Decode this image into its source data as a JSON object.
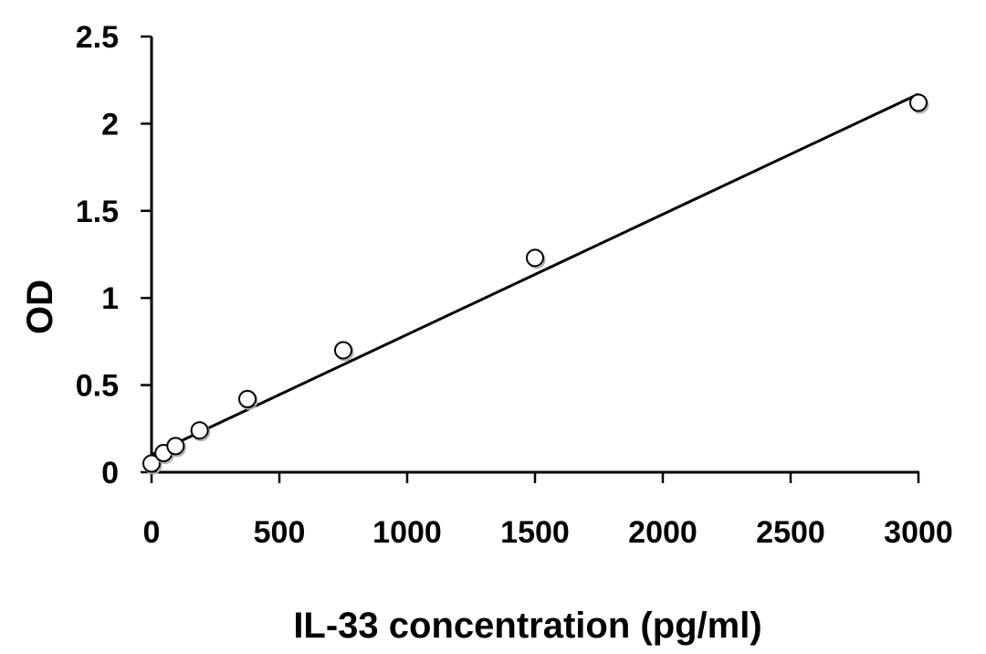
{
  "chart_data": {
    "type": "scatter",
    "title": "",
    "xlabel": "IL-33 concentration (pg/ml)",
    "ylabel": "OD",
    "xlim": [
      0,
      3000
    ],
    "ylim": [
      0,
      2.5
    ],
    "x_ticks": [
      0,
      500,
      1000,
      1500,
      2000,
      2500,
      3000
    ],
    "y_ticks": [
      0,
      0.5,
      1,
      1.5,
      2,
      2.5
    ],
    "x_tick_labels": [
      "0",
      "500",
      "1000",
      "1500",
      "2000",
      "2500",
      "3000"
    ],
    "y_tick_labels": [
      "0",
      "0.5",
      "1",
      "1.5",
      "2",
      "2.5"
    ],
    "grid": false,
    "legend": "none",
    "series": [
      {
        "x": [
          0,
          47,
          94,
          188,
          375,
          750,
          1500,
          3000
        ],
        "y": [
          0.05,
          0.11,
          0.15,
          0.24,
          0.42,
          0.7,
          1.23,
          2.12
        ],
        "marker": "open-circle"
      }
    ],
    "trendline": {
      "type": "linear",
      "x": [
        0,
        3000
      ],
      "y": [
        0.1,
        2.17
      ]
    },
    "colors": {
      "marker_fill": "#ffffff",
      "marker_edge": "#000000",
      "line": "#000000"
    }
  }
}
